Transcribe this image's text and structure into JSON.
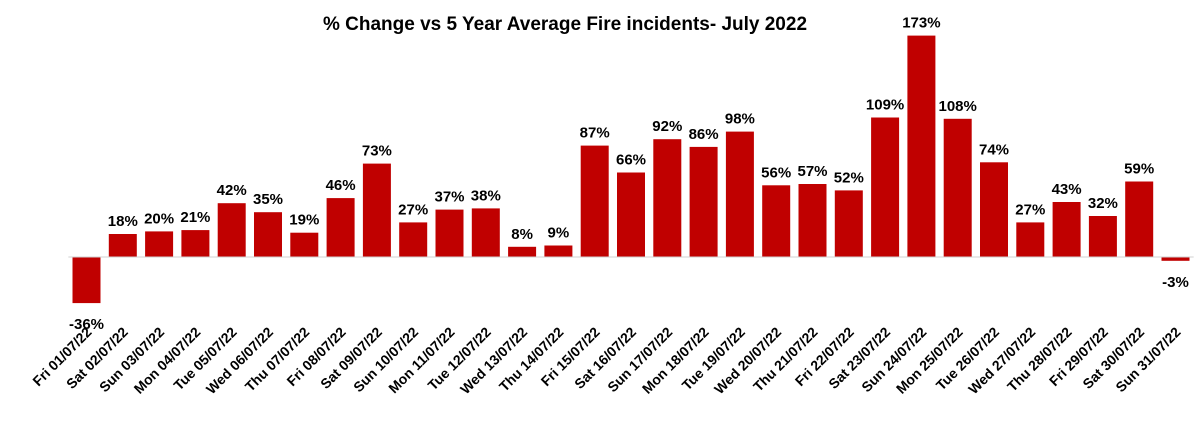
{
  "chart_data": {
    "type": "bar",
    "title": "% Change vs 5 Year Average Fire incidents- July 2022",
    "xlabel": "",
    "ylabel": "",
    "grid": false,
    "legend": "none",
    "bar_color": "#c00000",
    "axis_color": "#d0d0d0",
    "categories": [
      "Fri 01/07/22",
      "Sat 02/07/22",
      "Sun 03/07/22",
      "Mon 04/07/22",
      "Tue 05/07/22",
      "Wed 06/07/22",
      "Thu 07/07/22",
      "Fri 08/07/22",
      "Sat 09/07/22",
      "Sun 10/07/22",
      "Mon 11/07/22",
      "Tue 12/07/22",
      "Wed 13/07/22",
      "Thu 14/07/22",
      "Fri 15/07/22",
      "Sat 16/07/22",
      "Sun 17/07/22",
      "Mon 18/07/22",
      "Tue 19/07/22",
      "Wed 20/07/22",
      "Thu 21/07/22",
      "Fri 22/07/22",
      "Sat 23/07/22",
      "Sun 24/07/22",
      "Mon 25/07/22",
      "Tue 26/07/22",
      "Wed 27/07/22",
      "Thu 28/07/22",
      "Fri 29/07/22",
      "Sat 30/07/22",
      "Sun 31/07/22"
    ],
    "values": [
      -36,
      18,
      20,
      21,
      42,
      35,
      19,
      46,
      73,
      27,
      37,
      38,
      8,
      9,
      87,
      66,
      92,
      86,
      98,
      56,
      57,
      52,
      109,
      173,
      108,
      74,
      27,
      43,
      32,
      59,
      -3
    ],
    "data_labels": [
      "-36%",
      "18%",
      "20%",
      "21%",
      "42%",
      "35%",
      "19%",
      "46%",
      "73%",
      "27%",
      "37%",
      "38%",
      "8%",
      "9%",
      "87%",
      "66%",
      "92%",
      "86%",
      "98%",
      "56%",
      "57%",
      "52%",
      "109%",
      "173%",
      "108%",
      "74%",
      "27%",
      "43%",
      "32%",
      "59%",
      "-3%"
    ]
  }
}
